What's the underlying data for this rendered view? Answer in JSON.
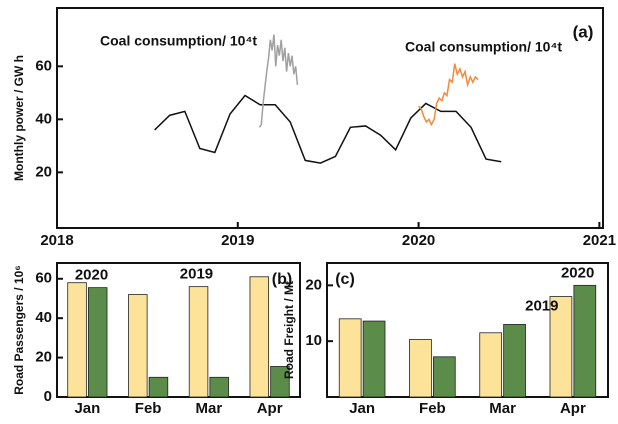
{
  "chart_data": [
    {
      "type": "line",
      "ylabel": "Monthly power / GW h",
      "xlim": [
        2018,
        2021.02
      ],
      "xticks": [
        2018,
        2019,
        2020,
        2021
      ],
      "ylim": [
        -1,
        82
      ],
      "yticks": [
        20,
        40,
        60
      ],
      "annotations": [
        "Coal consumption/ 10⁴t",
        "Coal consumption/ 10⁴t",
        "(a)"
      ],
      "series": [
        {
          "color": "#111111",
          "x": [
            2018.54,
            2018.623,
            2018.707,
            2018.79,
            2018.873,
            2018.957,
            2019.04,
            2019.123,
            2019.207,
            2019.29,
            2019.373,
            2019.457,
            2019.54,
            2019.623,
            2019.707,
            2019.79,
            2019.873,
            2019.957,
            2020.04,
            2020.123,
            2020.207,
            2020.29,
            2020.373,
            2020.457
          ],
          "values": [
            36,
            41.5,
            43,
            29,
            27.5,
            42,
            49,
            45.5,
            45.5,
            39,
            24.5,
            23.5,
            26,
            37,
            37.5,
            34,
            28.5,
            40.5,
            46,
            43,
            43,
            37,
            25,
            24
          ]
        },
        {
          "color": "#a0a0a0",
          "x": [
            2019.12,
            2019.13,
            2019.14,
            2019.15,
            2019.16,
            2019.17,
            2019.18,
            2019.19,
            2019.2,
            2019.21,
            2019.22,
            2019.23,
            2019.24,
            2019.25,
            2019.26,
            2019.27,
            2019.28,
            2019.29,
            2019.3,
            2019.31,
            2019.32,
            2019.33
          ],
          "values": [
            37,
            38,
            46,
            52,
            58,
            63,
            70,
            66,
            72,
            60,
            68,
            64,
            70,
            62,
            67,
            58,
            65,
            60,
            64,
            57,
            60,
            53
          ]
        },
        {
          "color": "#f08a3c",
          "x": [
            2020.0,
            2020.014,
            2020.029,
            2020.043,
            2020.057,
            2020.071,
            2020.086,
            2020.1,
            2020.114,
            2020.129,
            2020.143,
            2020.157,
            2020.171,
            2020.186,
            2020.2,
            2020.214,
            2020.229,
            2020.243,
            2020.257,
            2020.271,
            2020.286,
            2020.3,
            2020.314,
            2020.329
          ],
          "values": [
            45,
            44,
            41,
            39,
            40,
            38,
            40,
            46,
            48,
            47,
            50,
            49,
            55,
            54,
            61,
            57,
            59,
            56,
            58,
            53,
            56,
            54,
            56,
            55
          ]
        }
      ]
    },
    {
      "type": "bar",
      "ylabel": "Road Passengers / 10⁶",
      "ylim": [
        0,
        68
      ],
      "yticks": [
        0,
        20,
        40,
        60
      ],
      "categories": [
        "Jan",
        "Feb",
        "Mar",
        "Apr"
      ],
      "annotations": [
        "(b)"
      ],
      "series": [
        {
          "name": "2019",
          "color": "#fde39a",
          "values": [
            58,
            52,
            56,
            61
          ]
        },
        {
          "name": "2020",
          "color": "#5b8c4a",
          "values": [
            55.5,
            10,
            10,
            15.5
          ]
        }
      ]
    },
    {
      "type": "bar",
      "ylabel": "Road Freight / Mt",
      "ylim": [
        0,
        24
      ],
      "yticks": [
        10,
        20
      ],
      "categories": [
        "Jan",
        "Feb",
        "Mar",
        "Apr"
      ],
      "annotations": [
        "(c)"
      ],
      "series": [
        {
          "name": "2019",
          "color": "#fde39a",
          "values": [
            14,
            10.3,
            11.5,
            18
          ]
        },
        {
          "name": "2020",
          "color": "#5b8c4a",
          "values": [
            13.6,
            7.2,
            13,
            20
          ]
        }
      ]
    }
  ]
}
